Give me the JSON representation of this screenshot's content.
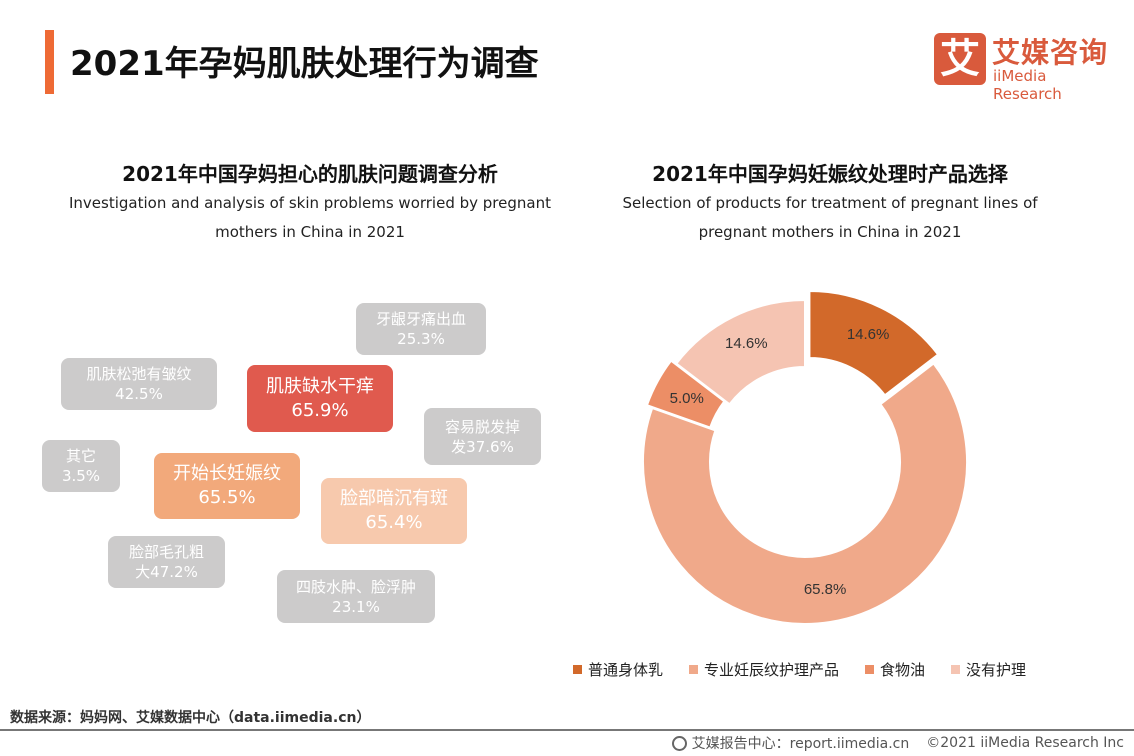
{
  "header": {
    "title": "2021年孕妈肌肤处理行为调查",
    "logo_cn": "艾媒咨询",
    "logo_en": "iiMedia Research",
    "logo_mark": "艾",
    "accent": "#EE6A35"
  },
  "left": {
    "title": "2021年中国孕妈担心的肌肤问题调查分析",
    "subtitle_1": "Investigation and analysis of skin problems worried by pregnant",
    "subtitle_2": "mothers in China in 2021"
  },
  "right": {
    "title": "2021年中国孕妈妊娠纹处理时产品选择",
    "subtitle_1": "Selection of products for treatment of pregnant lines of",
    "subtitle_2": "pregnant mothers in China in 2021"
  },
  "chart_data": [
    {
      "type": "bubble-tags",
      "items": [
        {
          "label": "牙龈牙痛出血",
          "value": "25.3%",
          "color": "#CCCBCB"
        },
        {
          "label": "肌肤松弛有皱纹",
          "value": "42.5%",
          "color": "#CCCBCB"
        },
        {
          "label": "肌肤缺水干痒",
          "value": "65.9%",
          "color": "#E05A4E"
        },
        {
          "label": "容易脱发掉",
          "value": "发37.6%",
          "color": "#CCCBCB"
        },
        {
          "label": "其它",
          "value": "3.5%",
          "color": "#CCCBCB"
        },
        {
          "label": "开始长妊娠纹",
          "value": "65.5%",
          "color": "#F2A97B"
        },
        {
          "label": "脸部暗沉有斑",
          "value": "65.4%",
          "color": "#F7C9AD"
        },
        {
          "label": "脸部毛孔粗",
          "value": "大47.2%",
          "color": "#CCCBCB"
        },
        {
          "label": "四肢水肿、脸浮肿",
          "value": "23.1%",
          "color": "#CCCBCB"
        }
      ]
    },
    {
      "type": "pie",
      "donut": true,
      "legend": "bottom",
      "slices": [
        {
          "name": "普通身体乳",
          "value": 14.6,
          "label": "14.6%",
          "color": "#D2692A"
        },
        {
          "name": "专业妊辰纹护理产品",
          "value": 65.8,
          "label": "65.8%",
          "color": "#F0A98A"
        },
        {
          "name": "食物油",
          "value": 5.0,
          "label": "5.0%",
          "color": "#EC8E66"
        },
        {
          "name": "没有护理",
          "value": 14.6,
          "label": "14.6%",
          "color": "#F5C4B2"
        }
      ]
    }
  ],
  "footer": {
    "source": "数据来源：妈妈网、艾媒数据中心（data.iimedia.cn）",
    "report": "艾媒报告中心：report.iimedia.cn",
    "copyright": "©2021  iiMedia Research  Inc"
  }
}
